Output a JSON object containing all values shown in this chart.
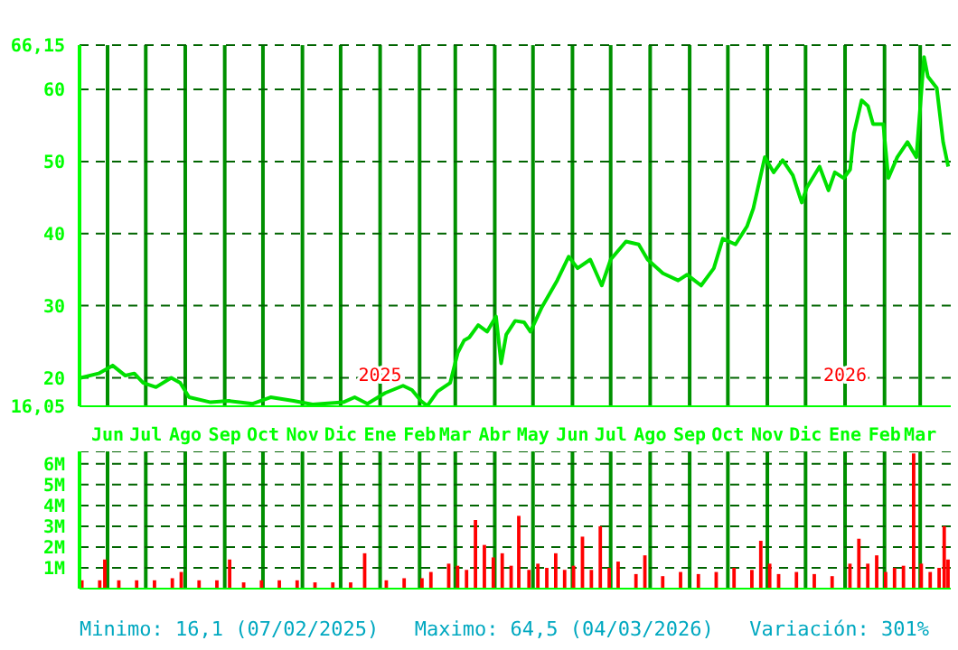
{
  "chart_data": [
    {
      "type": "line",
      "annotations": [
        "Minimo: 16,1 (07/02/2025)",
        "Maximo: 64,5 (04/03/2026)",
        "Variación: 301%"
      ],
      "x": [
        "2024-05-11",
        "2024-05-25",
        "2024-06-05",
        "2024-06-15",
        "2024-06-22",
        "2024-06-29",
        "2024-07-09",
        "2024-07-21",
        "2024-07-28",
        "2024-08-04",
        "2024-08-21",
        "2024-09-04",
        "2024-09-23",
        "2024-10-07",
        "2024-10-25",
        "2024-11-09",
        "2024-12-03",
        "2024-12-12",
        "2024-12-22",
        "2025-01-05",
        "2025-01-19",
        "2025-01-26",
        "2025-02-02",
        "2025-02-07",
        "2025-02-15",
        "2025-02-25",
        "2025-03-03",
        "2025-03-08",
        "2025-03-12",
        "2025-03-19",
        "2025-03-26",
        "2025-04-02",
        "2025-04-06",
        "2025-04-10",
        "2025-04-17",
        "2025-04-24",
        "2025-04-29",
        "2025-05-08",
        "2025-05-20",
        "2025-05-29",
        "2025-06-05",
        "2025-06-15",
        "2025-06-24",
        "2025-07-01",
        "2025-07-13",
        "2025-07-23",
        "2025-07-30",
        "2025-08-11",
        "2025-08-23",
        "2025-08-30",
        "2025-09-10",
        "2025-09-20",
        "2025-09-27",
        "2025-10-07",
        "2025-10-16",
        "2025-10-21",
        "2025-10-30",
        "2025-11-06",
        "2025-11-13",
        "2025-11-21",
        "2025-11-28",
        "2025-12-02",
        "2025-12-12",
        "2025-12-19",
        "2025-12-24",
        "2025-12-31",
        "2026-01-05",
        "2026-01-08",
        "2026-01-14",
        "2026-01-19",
        "2026-01-23",
        "2026-01-31",
        "2026-02-04",
        "2026-02-11",
        "2026-02-19",
        "2026-02-26",
        "2026-03-04",
        "2026-03-07",
        "2026-03-14",
        "2026-03-19",
        "2026-03-23"
      ],
      "series": [
        {
          "color": "#00e000",
          "values": [
            20.0,
            20.6,
            21.7,
            20.3,
            20.6,
            19.3,
            18.7,
            20.0,
            19.3,
            17.3,
            16.6,
            16.8,
            16.4,
            17.3,
            16.8,
            16.3,
            16.6,
            17.3,
            16.4,
            17.9,
            18.9,
            18.3,
            16.8,
            16.1,
            18.1,
            19.3,
            23.5,
            25.2,
            25.6,
            27.3,
            26.4,
            28.5,
            22,
            26,
            27.9,
            27.7,
            26.4,
            29.8,
            33.5,
            36.8,
            35.2,
            36.4,
            32.8,
            36.4,
            38.9,
            38.5,
            36.4,
            34.5,
            33.5,
            34.3,
            32.8,
            35.2,
            39.3,
            38.5,
            41,
            43.5,
            50.6,
            48.5,
            50.2,
            48.1,
            44.3,
            46.4,
            49.3,
            46,
            48.5,
            47.7,
            48.9,
            53.9,
            58.5,
            57.7,
            55.2,
            55.2,
            47.7,
            50.6,
            52.7,
            50.6,
            64.5,
            61.8,
            60.2,
            52.7,
            49.3
          ]
        }
      ],
      "xlim": [
        "2024-05-10",
        "2026-03-25"
      ],
      "xticks": [
        {
          "value": "2024-06-01",
          "label": "Jun"
        },
        {
          "value": "2024-07-01",
          "label": "Jul"
        },
        {
          "value": "2024-08-01",
          "label": "Ago"
        },
        {
          "value": "2024-09-01",
          "label": "Sep"
        },
        {
          "value": "2024-10-01",
          "label": "Oct"
        },
        {
          "value": "2024-11-01",
          "label": "Nov"
        },
        {
          "value": "2024-12-01",
          "label": "Dic"
        },
        {
          "value": "2025-01-01",
          "label": "Ene"
        },
        {
          "value": "2025-02-01",
          "label": "Feb"
        },
        {
          "value": "2025-03-01",
          "label": "Mar"
        },
        {
          "value": "2025-04-01",
          "label": "Abr"
        },
        {
          "value": "2025-05-01",
          "label": "May"
        },
        {
          "value": "2025-06-01",
          "label": "Jun"
        },
        {
          "value": "2025-07-01",
          "label": "Jul"
        },
        {
          "value": "2025-08-01",
          "label": "Ago"
        },
        {
          "value": "2025-09-01",
          "label": "Sep"
        },
        {
          "value": "2025-10-01",
          "label": "Oct"
        },
        {
          "value": "2025-11-01",
          "label": "Nov"
        },
        {
          "value": "2025-12-01",
          "label": "Dic"
        },
        {
          "value": "2026-01-01",
          "label": "Ene"
        },
        {
          "value": "2026-02-01",
          "label": "Feb"
        },
        {
          "value": "2026-03-01",
          "label": "Mar"
        }
      ],
      "x2lim": [
        "2024-05-10",
        "2026-03-25"
      ],
      "x2ticks": [
        {
          "value": "2025-01-01",
          "label": "2025"
        },
        {
          "value": "2026-01-01",
          "label": "2026"
        }
      ],
      "ylim": [
        16.05,
        66.15
      ],
      "yticks": [
        {
          "value": 16.05,
          "label": "16,05"
        },
        20,
        30,
        40,
        50,
        60,
        {
          "value": 66.15,
          "label": "66,15"
        }
      ],
      "grid": true,
      "marker": "none",
      "line_style": "solid"
    },
    {
      "type": "bar",
      "tick_labels": "y",
      "x": [
        "2024-05-12",
        "2024-05-26",
        "2024-05-30",
        "2024-06-10",
        "2024-06-24",
        "2024-07-08",
        "2024-07-22",
        "2024-07-29",
        "2024-08-12",
        "2024-08-26",
        "2024-09-05",
        "2024-09-16",
        "2024-09-30",
        "2024-10-14",
        "2024-10-28",
        "2024-11-11",
        "2024-11-25",
        "2024-12-09",
        "2024-12-20",
        "2025-01-06",
        "2025-01-20",
        "2025-02-03",
        "2025-02-10",
        "2025-02-24",
        "2025-03-03",
        "2025-03-10",
        "2025-03-17",
        "2025-03-24",
        "2025-03-31",
        "2025-04-07",
        "2025-04-14",
        "2025-04-20",
        "2025-04-28",
        "2025-05-05",
        "2025-05-12",
        "2025-05-19",
        "2025-05-26",
        "2025-06-02",
        "2025-06-09",
        "2025-06-16",
        "2025-06-23",
        "2025-06-30",
        "2025-07-07",
        "2025-07-21",
        "2025-07-28",
        "2025-08-11",
        "2025-08-25",
        "2025-09-08",
        "2025-09-22",
        "2025-10-06",
        "2025-10-20",
        "2025-10-27",
        "2025-11-03",
        "2025-11-10",
        "2025-11-24",
        "2025-12-08",
        "2025-12-22",
        "2026-01-05",
        "2026-01-12",
        "2026-01-19",
        "2026-01-26",
        "2026-02-02",
        "2026-02-09",
        "2026-02-16",
        "2026-02-24",
        "2026-03-02",
        "2026-03-09",
        "2026-03-16",
        "2026-03-20",
        "2026-03-23"
      ],
      "series": [
        {
          "color": "#ff0000",
          "values": [
            0.4,
            0.4,
            1.4,
            0.4,
            0.4,
            0.4,
            0.5,
            0.8,
            0.4,
            0.4,
            1.4,
            0.3,
            0.4,
            0.4,
            0.4,
            0.3,
            0.3,
            0.3,
            1.7,
            0.4,
            0.5,
            0.5,
            0.8,
            1.2,
            1.1,
            0.9,
            3.3,
            2.1,
            1.5,
            1.7,
            1.1,
            3.5,
            0.9,
            1.2,
            1.0,
            1.7,
            0.9,
            1.1,
            2.5,
            0.9,
            3.0,
            1.0,
            1.3,
            0.7,
            1.6,
            0.6,
            0.8,
            0.7,
            0.8,
            1.0,
            0.9,
            2.3,
            1.2,
            0.7,
            0.8,
            0.7,
            0.6,
            1.2,
            2.4,
            1.2,
            1.6,
            0.8,
            1.0,
            1.1,
            6.5,
            1.2,
            0.8,
            1.0,
            3.0,
            1.4
          ]
        }
      ],
      "xlim": [
        "2024-05-10",
        "2026-03-25"
      ],
      "xticks": [
        {
          "value": "2024-06-01",
          "label": null
        },
        {
          "value": "2024-07-01",
          "label": null
        },
        {
          "value": "2024-08-01",
          "label": null
        },
        {
          "value": "2024-09-01",
          "label": null
        },
        {
          "value": "2024-10-01",
          "label": null
        },
        {
          "value": "2024-11-01",
          "label": null
        },
        {
          "value": "2024-12-01",
          "label": null
        },
        {
          "value": "2025-01-01",
          "label": null
        },
        {
          "value": "2025-02-01",
          "label": null
        },
        {
          "value": "2025-03-01",
          "label": null
        },
        {
          "value": "2025-04-01",
          "label": null
        },
        {
          "value": "2025-05-01",
          "label": null
        },
        {
          "value": "2025-06-01",
          "label": null
        },
        {
          "value": "2025-07-01",
          "label": null
        },
        {
          "value": "2025-08-01",
          "label": null
        },
        {
          "value": "2025-09-01",
          "label": null
        },
        {
          "value": "2025-10-01",
          "label": null
        },
        {
          "value": "2025-11-01",
          "label": null
        },
        {
          "value": "2025-12-01",
          "label": null
        },
        {
          "value": "2026-01-01",
          "label": null
        },
        {
          "value": "2026-02-01",
          "label": null
        },
        {
          "value": "2026-03-01",
          "label": null
        }
      ],
      "ylim": [
        0,
        6.6
      ],
      "yticks": [
        {
          "value": 1,
          "label": "1M"
        },
        {
          "value": 2,
          "label": "2M"
        },
        {
          "value": 3,
          "label": "3M"
        },
        {
          "value": 4,
          "label": "4M"
        },
        {
          "value": 5,
          "label": "5M"
        },
        {
          "value": 6,
          "label": "6M"
        }
      ],
      "grid": true
    }
  ]
}
